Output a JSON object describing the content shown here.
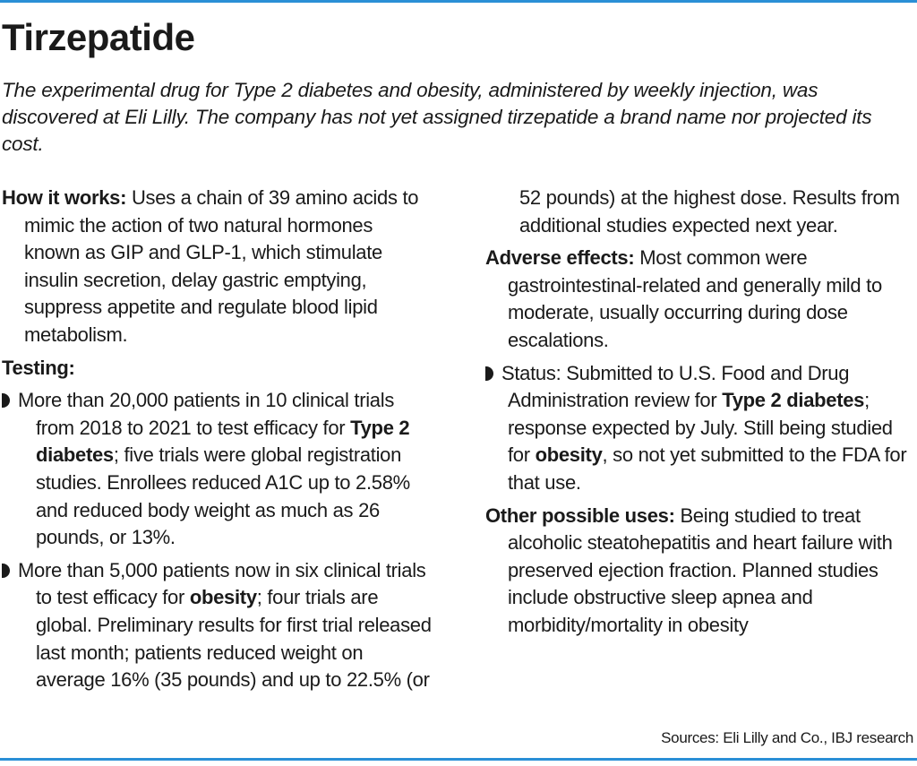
{
  "header": {
    "title": "Tirzepatide",
    "subtitle": "The experimental drug for Type 2 diabetes and obesity, administered by weekly injection, was discovered at Eli Lilly. The company has not yet assigned tirzepatide a brand name nor projected its cost."
  },
  "how_it_works": {
    "label": "How it works:",
    "text": "Uses a chain of 39 amino acids to mimic the action of two natural hormones known as GIP and GLP-1, which stimulate insulin secretion, delay gastric emptying, suppress appetite and regulate blood lipid metabolism."
  },
  "testing": {
    "label": "Testing:",
    "bullets": [
      [
        "More than 20,000 patients in 10 clinical trials from 2018 to 2021 to test efficacy for ",
        "Type 2 diabetes",
        "; five trials were global registration studies. Enrollees reduced A1C up to 2.58% and reduced body weight as much as 26 pounds, or 13%."
      ],
      [
        "More than 5,000 patients now in six clinical trials to test efficacy for ",
        "obesity",
        "; four trials are global. Preliminary results for first trial released last month; patients reduced weight on average 16% (35 pounds) and up to 22.5% (or 52 pounds) at the highest dose. Results from additional studies expected next year."
      ]
    ]
  },
  "adverse_effects": {
    "label": "Adverse effects:",
    "text": "Most common were gastrointestinal-related and generally mild to moderate, usually occurring during dose escalations."
  },
  "status": [
    "Status: Submitted to U.S. Food and Drug Administration review for ",
    "Type 2 diabetes",
    "; response expected by July. Still being studied for ",
    "obesity",
    ", so not yet submitted to the FDA for that use."
  ],
  "other_uses": {
    "label": "Other possible uses:",
    "text": "Being studied to treat alcoholic steatohepatitis and heart failure with preserved ejection fraction. Planned studies include obstructive sleep apnea and morbidity/mortality in obesity"
  },
  "source": "Sources: Eli Lilly and Co., IBJ research"
}
